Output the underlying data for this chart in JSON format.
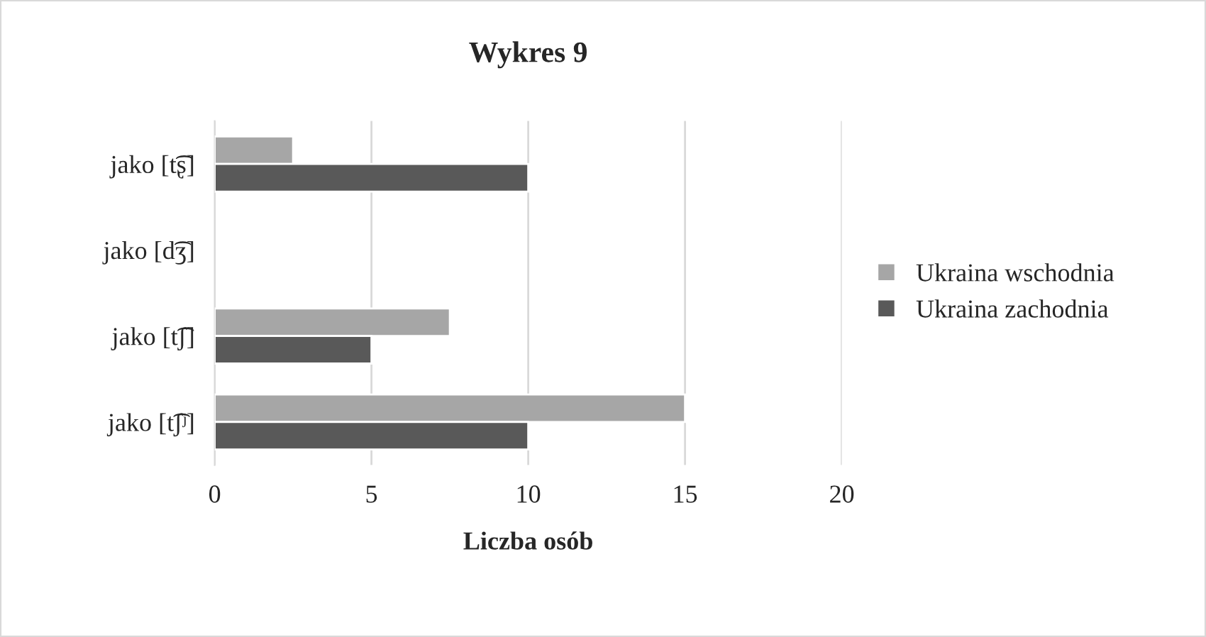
{
  "chart_data": {
    "type": "bar",
    "orientation": "horizontal",
    "title": "Wykres 9",
    "xlabel": "Liczba osób",
    "categories": [
      "jako [t͡ʂ]",
      "jako [d͡ʒ]",
      "jako [t͡ʃ]",
      "jako [t͡ʃʲ]"
    ],
    "series": [
      {
        "name": "Ukraina wschodnia",
        "color": "#a6a6a6",
        "values": [
          2.5,
          null,
          7.5,
          15
        ]
      },
      {
        "name": "Ukraina zachodnia",
        "color": "#595959",
        "values": [
          10,
          null,
          5,
          10
        ]
      }
    ],
    "xlim": [
      0,
      20
    ],
    "xticks": [
      0,
      5,
      10,
      15,
      20
    ],
    "grid": "x",
    "legend": "right"
  }
}
